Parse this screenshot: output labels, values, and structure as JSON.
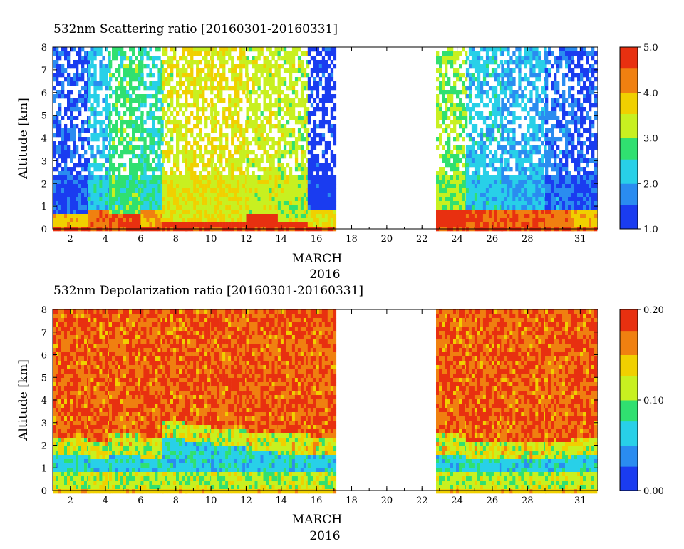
{
  "chart_data": [
    {
      "type": "heatmap",
      "title": "532nm Scattering ratio [20160301-20160331]",
      "xlabel": "MARCH",
      "xlabel2": "2016",
      "ylabel": "Altitude [km]",
      "xlim": [
        1,
        32
      ],
      "ylim": [
        0,
        8
      ],
      "xticks": [
        2,
        4,
        6,
        8,
        10,
        12,
        14,
        16,
        18,
        20,
        22,
        24,
        26,
        28,
        31
      ],
      "yticks": [
        0,
        1,
        2,
        3,
        4,
        5,
        6,
        7,
        8
      ],
      "colorbar": {
        "min": 1.0,
        "max": 5.0,
        "ticks": [
          "1.0",
          "2.0",
          "3.0",
          "4.0",
          "5.0"
        ]
      },
      "colors": [
        "#1a3cf0",
        "#2a8cf0",
        "#28d0e8",
        "#30e070",
        "#c8f020",
        "#f0d000",
        "#f08010",
        "#e83010"
      ],
      "data_gaps": [
        [
          17.0,
          22.8
        ]
      ],
      "segments": [
        {
          "x": [
            1.0,
            3.0
          ],
          "low": 1.8,
          "high": 3.8,
          "top": 0.75
        },
        {
          "x": [
            3.0,
            4.2
          ],
          "low": 2.6,
          "high": 4.3,
          "top": 0.9
        },
        {
          "x": [
            4.2,
            6.0
          ],
          "low": 3.1,
          "high": 4.6,
          "top": 0.75
        },
        {
          "x": [
            6.0,
            7.2
          ],
          "low": 2.9,
          "high": 4.0,
          "top": 0.85
        },
        {
          "x": [
            7.2,
            8.5
          ],
          "low": 3.8,
          "high": 4.8,
          "top": 0.35
        },
        {
          "x": [
            8.5,
            10.0
          ],
          "low": 3.9,
          "high": 4.9,
          "top": 0.35
        },
        {
          "x": [
            10.0,
            12.0
          ],
          "low": 3.9,
          "high": 4.9,
          "top": 0.35
        },
        {
          "x": [
            12.0,
            13.8
          ],
          "low": 3.7,
          "high": 4.8,
          "top": 0.7
        },
        {
          "x": [
            13.8,
            15.5
          ],
          "low": 3.6,
          "high": 4.8,
          "top": 0.35
        },
        {
          "x": [
            15.5,
            17.0
          ],
          "low": 1.6,
          "high": 3.6,
          "top": 0.85
        },
        {
          "x": [
            22.8,
            24.5
          ],
          "low": 3.4,
          "high": 4.8,
          "top": 0.85
        },
        {
          "x": [
            24.5,
            26.5
          ],
          "low": 2.6,
          "high": 4.6,
          "top": 0.9
        },
        {
          "x": [
            26.5,
            29.0
          ],
          "low": 2.4,
          "high": 4.5,
          "top": 0.9
        },
        {
          "x": [
            29.0,
            30.5
          ],
          "low": 2.0,
          "high": 4.3,
          "top": 0.85
        },
        {
          "x": [
            30.5,
            31.8
          ],
          "low": 1.8,
          "high": 3.8,
          "top": 0.85
        }
      ]
    },
    {
      "type": "heatmap",
      "title": "532nm Depolarization ratio [20160301-20160331]",
      "xlabel": "MARCH",
      "xlabel2": "2016",
      "ylabel": "Altitude [km]",
      "xlim": [
        1,
        32
      ],
      "ylim": [
        0,
        8
      ],
      "xticks": [
        2,
        4,
        6,
        8,
        10,
        12,
        14,
        16,
        18,
        20,
        22,
        24,
        26,
        28,
        31
      ],
      "yticks": [
        0,
        1,
        2,
        3,
        4,
        5,
        6,
        7,
        8
      ],
      "colorbar": {
        "min": 0.0,
        "max": 0.2,
        "ticks": [
          "0.00",
          "0.10",
          "0.20"
        ]
      },
      "colors": [
        "#1a3cf0",
        "#2a8cf0",
        "#28d0e8",
        "#30e070",
        "#c8f020",
        "#f0d000",
        "#f08010",
        "#e83010"
      ],
      "data_gaps": [
        [
          17.0,
          22.8
        ]
      ],
      "segments": [
        {
          "x": [
            1.0,
            3.0
          ],
          "low": 1.6,
          "high": 2.4,
          "top": 1.0
        },
        {
          "x": [
            3.0,
            4.2
          ],
          "low": 1.4,
          "high": 2.2,
          "top": 1.0
        },
        {
          "x": [
            4.2,
            6.0
          ],
          "low": 1.6,
          "high": 2.6,
          "top": 1.0
        },
        {
          "x": [
            6.0,
            7.2
          ],
          "low": 1.5,
          "high": 2.4,
          "top": 1.0
        },
        {
          "x": [
            7.2,
            8.5
          ],
          "low": 2.5,
          "high": 3.2,
          "top": 1.0
        },
        {
          "x": [
            8.5,
            10.0
          ],
          "low": 2.3,
          "high": 3.0,
          "top": 1.0
        },
        {
          "x": [
            10.0,
            12.0
          ],
          "low": 2.0,
          "high": 2.8,
          "top": 1.0
        },
        {
          "x": [
            12.0,
            13.8
          ],
          "low": 1.8,
          "high": 2.7,
          "top": 1.0
        },
        {
          "x": [
            13.8,
            15.5
          ],
          "low": 1.6,
          "high": 2.6,
          "top": 1.0
        },
        {
          "x": [
            15.5,
            17.0
          ],
          "low": 1.6,
          "high": 2.5,
          "top": 1.0
        },
        {
          "x": [
            22.8,
            24.5
          ],
          "low": 1.7,
          "high": 2.6,
          "top": 1.0
        },
        {
          "x": [
            24.5,
            26.5
          ],
          "low": 1.5,
          "high": 2.3,
          "top": 1.0
        },
        {
          "x": [
            26.5,
            29.0
          ],
          "low": 1.4,
          "high": 2.2,
          "top": 1.0
        },
        {
          "x": [
            29.0,
            30.5
          ],
          "low": 1.5,
          "high": 2.3,
          "top": 1.0
        },
        {
          "x": [
            30.5,
            31.8
          ],
          "low": 1.6,
          "high": 2.5,
          "top": 1.0
        }
      ]
    }
  ]
}
